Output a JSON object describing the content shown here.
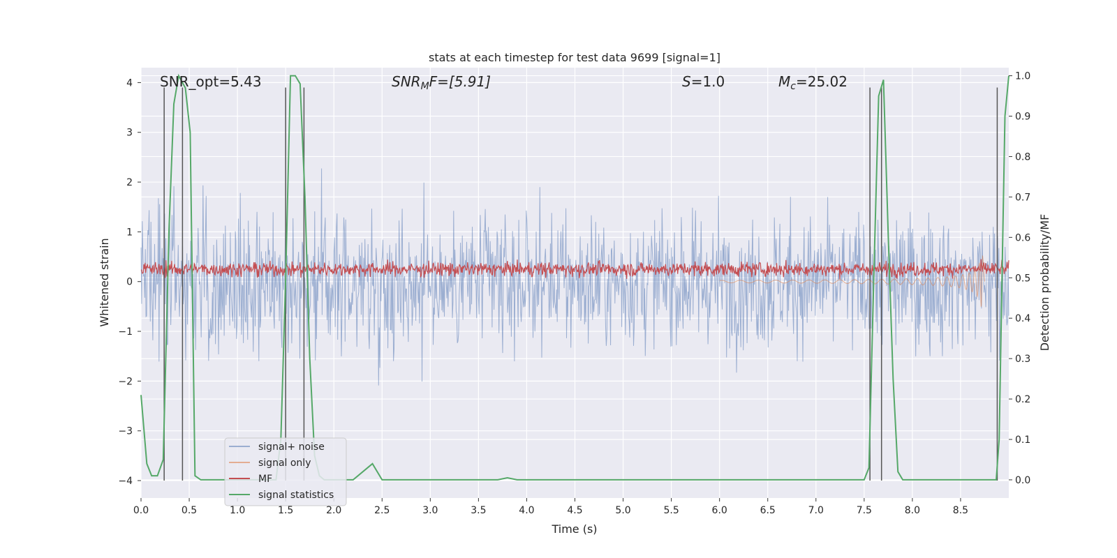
{
  "chart_data": {
    "type": "line",
    "title": "stats at each timestep for test data 9699 [signal=1]",
    "xlabel": "Time (s)",
    "ylabel_left": "Whitened strain",
    "ylabel_right": "Detection probability/MF",
    "xlim": [
      0.0,
      9.0
    ],
    "ylim_left": [
      -4.35,
      4.3
    ],
    "ylim_right": [
      -0.045,
      1.02
    ],
    "xticks": [
      0.0,
      0.5,
      1.0,
      1.5,
      2.0,
      2.5,
      3.0,
      3.5,
      4.0,
      4.5,
      5.0,
      5.5,
      6.0,
      6.5,
      7.0,
      7.5,
      8.0,
      8.5
    ],
    "xtick_labels": [
      "0.0",
      "0.5",
      "1.0",
      "1.5",
      "2.0",
      "2.5",
      "3.0",
      "3.5",
      "4.0",
      "4.5",
      "5.0",
      "5.5",
      "6.0",
      "6.5",
      "7.0",
      "7.5",
      "8.0",
      "8.5"
    ],
    "yticks_left": [
      4,
      3,
      2,
      1,
      0,
      -1,
      -2,
      -3,
      -4
    ],
    "ytick_labels_left": [
      "4",
      "3",
      "2",
      "1",
      "0",
      "−1",
      "−2",
      "−3",
      "−4"
    ],
    "yticks_right": [
      1.0,
      0.9,
      0.8,
      0.7,
      0.6,
      0.5,
      0.4,
      0.3,
      0.2,
      0.1,
      0.0
    ],
    "ytick_labels_right": [
      "1.0",
      "0.9",
      "0.8",
      "0.7",
      "0.6",
      "0.5",
      "0.4",
      "0.3",
      "0.2",
      "0.1",
      "0.0"
    ],
    "grid": true,
    "legend_position": "lower-left",
    "annotations": {
      "snr_opt": "SNR_opt=5.43",
      "snr_mf_label": "SNR",
      "snr_mf_sub": "M",
      "snr_mf_rest": "F=[5.91]",
      "s_label": "S",
      "s_rest": "=1.0",
      "mc_label": "M",
      "mc_sub": "c",
      "mc_rest": "=25.02"
    },
    "series": [
      {
        "name": "signal+ noise",
        "color": "#4c72b0",
        "style": "dense noise, amplitude about ±1.5 to ±2.5, peaks near ±4"
      },
      {
        "name": "signal only",
        "color": "#dd8452",
        "style": "chirp growing from 0 to about ±1.2 near t=8.65 s, ends near 8.75 s"
      },
      {
        "name": "MF",
        "color": "#c44e52",
        "style": "noisy band between 0.05 and 0.6 on left axis"
      },
      {
        "name": "signal statistics",
        "color": "#55a868",
        "x": [
          0.0,
          0.06,
          0.11,
          0.17,
          0.23,
          0.29,
          0.34,
          0.39,
          0.46,
          0.51,
          0.56,
          0.62,
          0.68,
          1.0,
          1.4,
          1.45,
          1.5,
          1.55,
          1.6,
          1.65,
          1.7,
          1.75,
          1.8,
          1.85,
          1.9,
          2.0,
          2.1,
          2.2,
          2.3,
          2.4,
          2.5,
          2.6,
          3.0,
          3.5,
          3.7,
          3.8,
          3.9,
          4.0,
          5.0,
          6.0,
          7.0,
          7.5,
          7.55,
          7.6,
          7.65,
          7.7,
          7.75,
          7.8,
          7.85,
          7.9,
          8.0,
          8.5,
          8.8,
          8.87,
          8.9,
          8.93,
          8.96,
          9.0
        ],
        "y": [
          0.21,
          0.04,
          0.01,
          0.01,
          0.05,
          0.62,
          0.93,
          1.0,
          0.97,
          0.86,
          0.01,
          0.0,
          0.0,
          0.0,
          0.0,
          0.1,
          0.5,
          1.0,
          1.0,
          0.98,
          0.7,
          0.3,
          0.06,
          0.01,
          0.0,
          0.0,
          0.0,
          0.0,
          0.02,
          0.04,
          0.0,
          0.0,
          0.0,
          0.0,
          0.0,
          0.005,
          0.0,
          0.0,
          0.0,
          0.0,
          0.0,
          0.0,
          0.03,
          0.5,
          0.95,
          0.99,
          0.6,
          0.25,
          0.02,
          0.0,
          0.0,
          0.0,
          0.0,
          0.0,
          0.1,
          0.5,
          0.9,
          1.0
        ]
      }
    ],
    "vertical_lines_x": [
      0.24,
      0.43,
      1.5,
      1.69,
      7.56,
      7.68,
      8.88
    ]
  }
}
